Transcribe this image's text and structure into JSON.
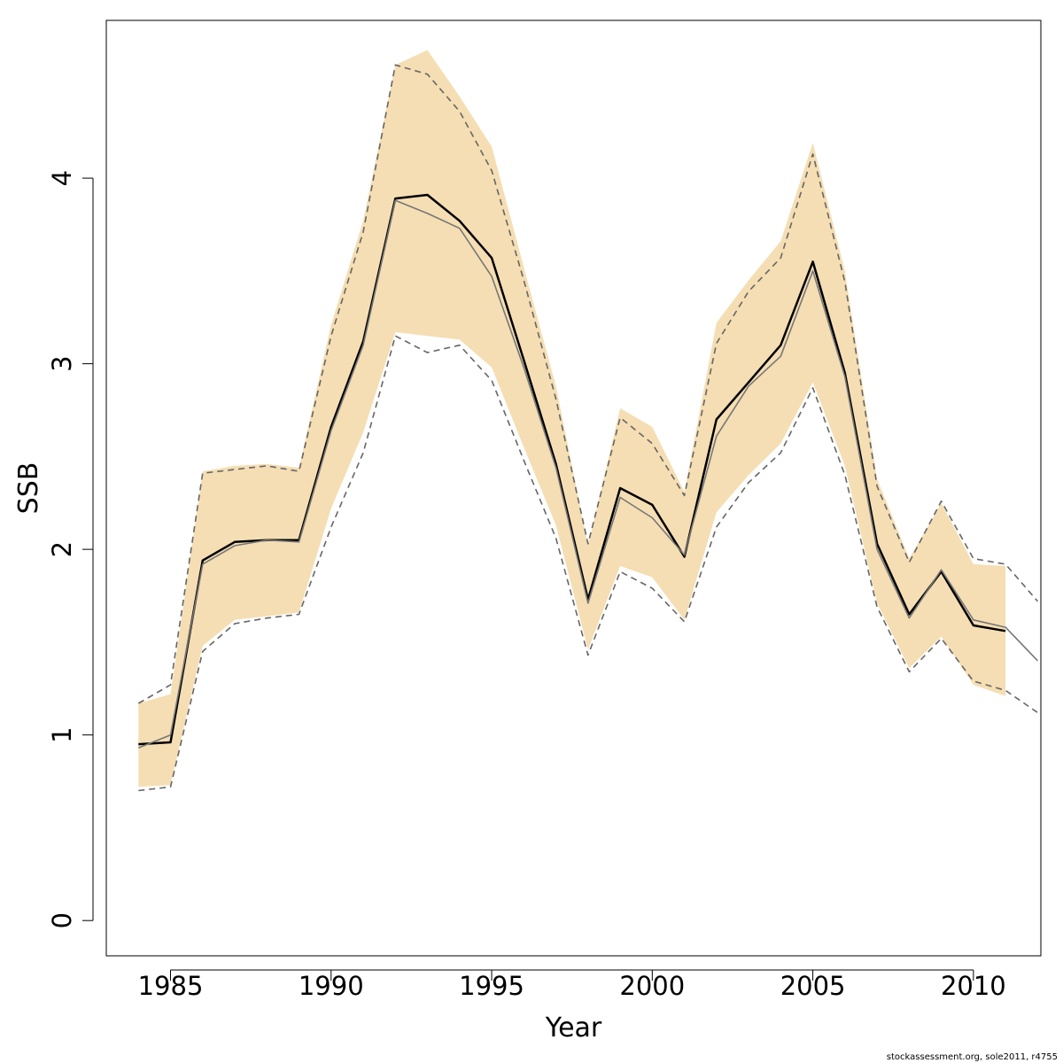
{
  "chart_data": {
    "type": "line",
    "xlabel": "Year",
    "ylabel": "SSB",
    "xlim": [
      1983.0,
      2012.1
    ],
    "ylim": [
      -0.19,
      4.85
    ],
    "x_ticks": [
      1985,
      1990,
      1995,
      2000,
      2005,
      2010
    ],
    "y_ticks": [
      0,
      1,
      2,
      3,
      4
    ],
    "grid": false,
    "band_color": "#f5deb3",
    "series": [
      {
        "style": "confidence-band",
        "x": [
          1984,
          1985,
          1986,
          1987,
          1988,
          1989,
          1990,
          1991,
          1992,
          1993,
          1994,
          1995,
          1996,
          1997,
          1998,
          1999,
          2000,
          2001,
          2002,
          2003,
          2004,
          2005,
          2006,
          2007,
          2008,
          2009,
          2010,
          2011
        ],
        "lower": [
          0.72,
          0.73,
          1.48,
          1.62,
          1.64,
          1.66,
          2.22,
          2.63,
          3.17,
          3.15,
          3.13,
          2.98,
          2.55,
          2.13,
          1.46,
          1.91,
          1.85,
          1.62,
          2.2,
          2.4,
          2.57,
          2.9,
          2.45,
          1.71,
          1.36,
          1.53,
          1.27,
          1.21
        ],
        "upper": [
          1.17,
          1.22,
          2.42,
          2.45,
          2.46,
          2.44,
          3.21,
          3.77,
          4.61,
          4.69,
          4.44,
          4.17,
          3.52,
          2.88,
          2.02,
          2.76,
          2.66,
          2.31,
          3.22,
          3.45,
          3.66,
          4.19,
          3.5,
          2.38,
          1.95,
          2.25,
          1.92,
          1.91
        ]
      },
      {
        "style": "estimate-thick",
        "x": [
          1984,
          1985,
          1986,
          1987,
          1988,
          1989,
          1990,
          1991,
          1992,
          1993,
          1994,
          1995,
          1996,
          1997,
          1998,
          1999,
          2000,
          2001,
          2002,
          2003,
          2004,
          2005,
          2006,
          2007,
          2008,
          2009,
          2010,
          2011
        ],
        "values": [
          0.95,
          0.96,
          1.94,
          2.04,
          2.05,
          2.05,
          2.66,
          3.12,
          3.89,
          3.91,
          3.77,
          3.57,
          3.02,
          2.46,
          1.73,
          2.33,
          2.24,
          1.96,
          2.7,
          2.9,
          3.1,
          3.55,
          2.95,
          2.03,
          1.65,
          1.88,
          1.59,
          1.56
        ]
      },
      {
        "style": "estimate-thin",
        "x": [
          1984,
          1985,
          1986,
          1987,
          1988,
          1989,
          1990,
          1991,
          1992,
          1993,
          1994,
          1995,
          1996,
          1997,
          1998,
          1999,
          2000,
          2001,
          2002,
          2003,
          2004,
          2005,
          2006,
          2007,
          2008,
          2009,
          2010,
          2011,
          2012
        ],
        "values": [
          0.93,
          1.0,
          1.92,
          2.02,
          2.05,
          2.04,
          2.64,
          3.1,
          3.88,
          3.81,
          3.73,
          3.47,
          2.98,
          2.44,
          1.71,
          2.28,
          2.17,
          1.97,
          2.61,
          2.88,
          3.04,
          3.5,
          2.93,
          2.0,
          1.63,
          1.89,
          1.62,
          1.58,
          1.4
        ]
      },
      {
        "style": "ci-upper-dashed",
        "x": [
          1984,
          1985,
          1986,
          1987,
          1988,
          1989,
          1990,
          1991,
          1992,
          1993,
          1994,
          1995,
          1996,
          1997,
          1998,
          1999,
          2000,
          2001,
          2002,
          2003,
          2004,
          2005,
          2006,
          2007,
          2008,
          2009,
          2010,
          2011,
          2012
        ],
        "values": [
          1.17,
          1.27,
          2.41,
          2.43,
          2.45,
          2.42,
          3.15,
          3.71,
          4.61,
          4.56,
          4.36,
          4.04,
          3.45,
          2.81,
          2.03,
          2.71,
          2.57,
          2.29,
          3.11,
          3.39,
          3.57,
          4.13,
          3.44,
          2.34,
          1.93,
          2.26,
          1.95,
          1.92,
          1.72
        ]
      },
      {
        "style": "ci-lower-dashed",
        "x": [
          1984,
          1985,
          1986,
          1987,
          1988,
          1989,
          1990,
          1991,
          1992,
          1993,
          1994,
          1995,
          1996,
          1997,
          1998,
          1999,
          2000,
          2001,
          2002,
          2003,
          2004,
          2005,
          2006,
          2007,
          2008,
          2009,
          2010,
          2011,
          2012
        ],
        "values": [
          0.7,
          0.72,
          1.45,
          1.6,
          1.63,
          1.65,
          2.12,
          2.52,
          3.15,
          3.06,
          3.1,
          2.91,
          2.48,
          2.06,
          1.43,
          1.88,
          1.79,
          1.61,
          2.12,
          2.36,
          2.52,
          2.87,
          2.4,
          1.69,
          1.34,
          1.52,
          1.29,
          1.24,
          1.12
        ]
      }
    ]
  },
  "footnote": "stockassessment.org, sole2011, r4755"
}
